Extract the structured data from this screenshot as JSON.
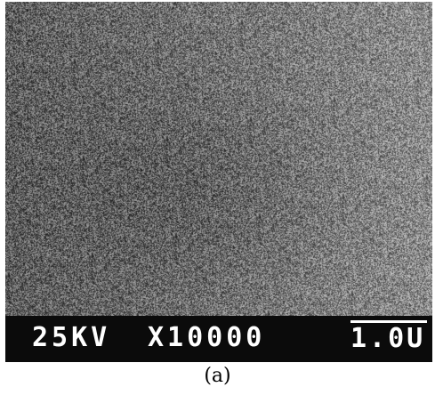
{
  "figure": {
    "caption": "(a)"
  },
  "sem_image": {
    "accelerating_voltage": "25KV",
    "magnification": "X10000",
    "scale_bar_label": "1.0U"
  },
  "colors": {
    "data_bar_background": "#0b0b0b",
    "data_bar_text": "#ffffff",
    "caption_text": "#000000"
  }
}
